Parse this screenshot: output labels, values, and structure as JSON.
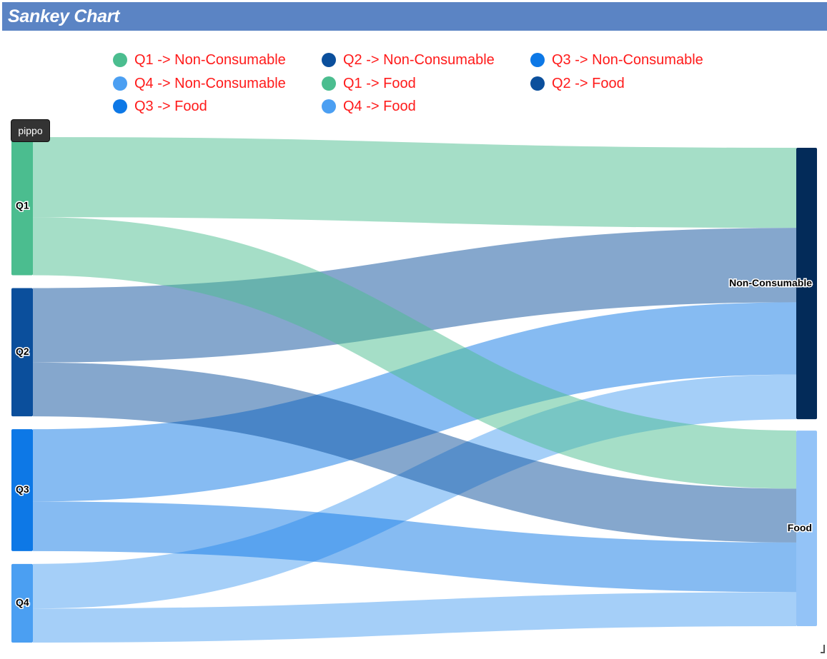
{
  "header": {
    "title": "Sankey Chart"
  },
  "tooltip": {
    "text": "pippo"
  },
  "chart_data": {
    "type": "sankey",
    "title": "Sankey Chart",
    "sources": [
      {
        "name": "Q1",
        "color": "#4bbd8f"
      },
      {
        "name": "Q2",
        "color": "#0b4f9c"
      },
      {
        "name": "Q3",
        "color": "#0d78e6"
      },
      {
        "name": "Q4",
        "color": "#4b9ff2"
      }
    ],
    "targets": [
      {
        "name": "Non-Consumable",
        "color": "#032b59"
      },
      {
        "name": "Food",
        "color": "#93c3f7"
      }
    ],
    "links": [
      {
        "label": "Q1 -> Non-Consumable",
        "source": "Q1",
        "target": "Non-Consumable",
        "value": 113
      },
      {
        "label": "Q2 -> Non-Consumable",
        "source": "Q2",
        "target": "Non-Consumable",
        "value": 105
      },
      {
        "label": "Q3 -> Non-Consumable",
        "source": "Q3",
        "target": "Non-Consumable",
        "value": 102
      },
      {
        "label": "Q4 -> Non-Consumable",
        "source": "Q4",
        "target": "Non-Consumable",
        "value": 63
      },
      {
        "label": "Q1 -> Food",
        "source": "Q1",
        "target": "Food",
        "value": 82
      },
      {
        "label": "Q2 -> Food",
        "source": "Q2",
        "target": "Food",
        "value": 76
      },
      {
        "label": "Q3 -> Food",
        "source": "Q3",
        "target": "Food",
        "value": 70
      },
      {
        "label": "Q4 -> Food",
        "source": "Q4",
        "target": "Food",
        "value": 48
      }
    ],
    "legend": [
      {
        "label": "Q1 -> Non-Consumable",
        "color": "#4bbd8f"
      },
      {
        "label": "Q2 -> Non-Consumable",
        "color": "#0b4f9c"
      },
      {
        "label": "Q3 -> Non-Consumable",
        "color": "#0d78e6"
      },
      {
        "label": "Q4 -> Non-Consumable",
        "color": "#4b9ff2"
      },
      {
        "label": "Q1 -> Food",
        "color": "#4bbd8f"
      },
      {
        "label": "Q2 -> Food",
        "color": "#0b4f9c"
      },
      {
        "label": "Q3 -> Food",
        "color": "#0d78e6"
      },
      {
        "label": "Q4 -> Food",
        "color": "#4b9ff2"
      }
    ],
    "legend_placement": "top",
    "legend_text_color": "#ff1a1a"
  }
}
